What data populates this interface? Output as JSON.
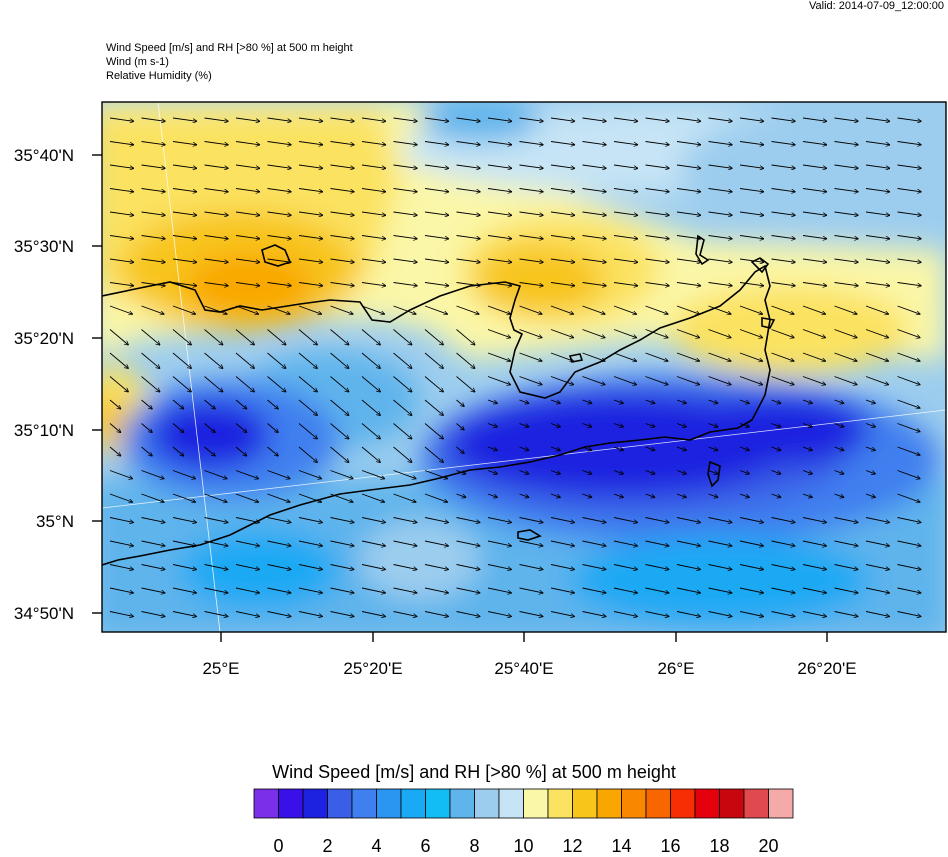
{
  "header": {
    "valid": "Valid: 2014-07-09_12:00:00",
    "line1": "Wind Speed [m/s] and RH [>80 %] at 500 m height",
    "line2": "Wind   (m s-1)",
    "line3": "Relative Humidity   (%)"
  },
  "axes": {
    "lat_labels": [
      "35°40'N",
      "35°30'N",
      "35°20'N",
      "35°10'N",
      "35°N",
      "34°50'N"
    ],
    "lon_labels": [
      "25°E",
      "25°20'E",
      "25°40'E",
      "26°E",
      "26°20'E"
    ]
  },
  "colorbar": {
    "title": "Wind Speed [m/s] and RH [>80 %] at 500 m height",
    "ticks": [
      "0",
      "2",
      "4",
      "6",
      "8",
      "10",
      "12",
      "14",
      "16",
      "18",
      "20"
    ],
    "colors": [
      "#7b2fe8",
      "#3a10e8",
      "#1c22e0",
      "#3a5ee6",
      "#3f7fef",
      "#2a96f2",
      "#1aa9f4",
      "#12bdf5",
      "#5fb4ec",
      "#9ccdee",
      "#c6e4f5",
      "#fbf7a8",
      "#fbe260",
      "#f8c51b",
      "#f9a700",
      "#f98800",
      "#f86600",
      "#f62e03",
      "#e4000d",
      "#c8060e",
      "#e04a4f",
      "#f5aaaa"
    ]
  },
  "wind_field": {
    "prevailing_direction": "west-northwest",
    "max_speed_ms": 14,
    "min_speed_ms": 1
  }
}
